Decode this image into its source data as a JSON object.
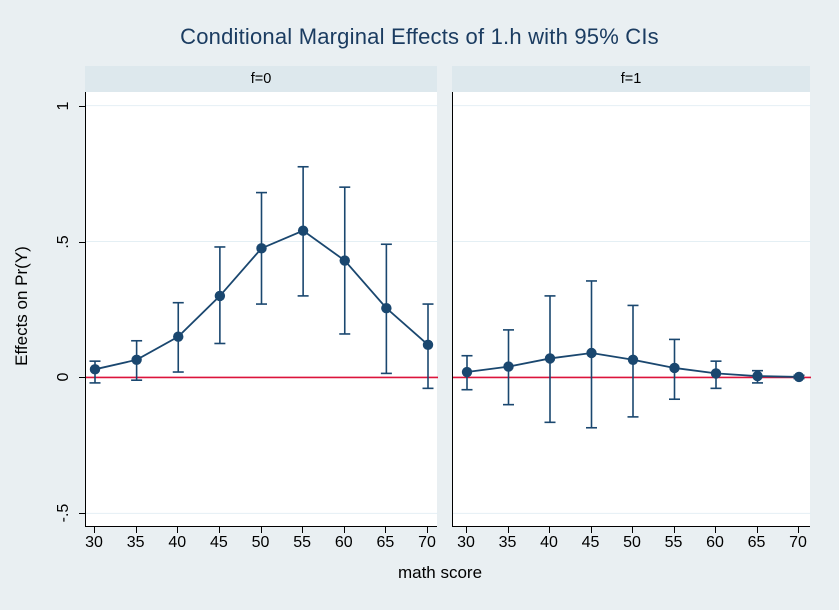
{
  "chart_data": {
    "type": "line",
    "title": "Conditional Marginal Effects of 1.h with 95% CIs",
    "xlabel": "math score",
    "ylabel": "Effects on Pr(Y)",
    "x": [
      30,
      35,
      40,
      45,
      50,
      55,
      60,
      65,
      70
    ],
    "x_tick_labels": [
      "30",
      "35",
      "40",
      "45",
      "50",
      "55",
      "60",
      "65",
      "70"
    ],
    "y_ticks": [
      {
        "value": 1,
        "label": "1"
      },
      {
        "value": 0.5,
        "label": ".5"
      },
      {
        "value": 0,
        "label": "0"
      },
      {
        "value": -0.5,
        "label": "-.5"
      }
    ],
    "ylim": [
      -0.55,
      1.05
    ],
    "xlim": [
      30,
      70
    ],
    "grid": true,
    "legend": "none",
    "reference_line_y": 0,
    "panels": [
      {
        "label": "f=0",
        "estimate": [
          0.03,
          0.065,
          0.15,
          0.3,
          0.475,
          0.54,
          0.43,
          0.255,
          0.12
        ],
        "ci_low": [
          -0.02,
          -0.01,
          0.02,
          0.125,
          0.27,
          0.3,
          0.16,
          0.015,
          -0.04
        ],
        "ci_high": [
          0.06,
          0.135,
          0.275,
          0.48,
          0.68,
          0.775,
          0.7,
          0.49,
          0.27
        ]
      },
      {
        "label": "f=1",
        "estimate": [
          0.02,
          0.04,
          0.07,
          0.09,
          0.065,
          0.035,
          0.015,
          0.005,
          0.002
        ],
        "ci_low": [
          -0.045,
          -0.1,
          -0.165,
          -0.185,
          -0.145,
          -0.08,
          -0.04,
          -0.02,
          -0.004
        ],
        "ci_high": [
          0.08,
          0.175,
          0.3,
          0.355,
          0.265,
          0.14,
          0.06,
          0.025,
          0.008
        ]
      }
    ],
    "colors": {
      "series": "#1a476f",
      "reference_line": "#dc143c",
      "grid_line": "#e4eff4",
      "title_text": "#1b3c61",
      "figure_background": "#e9eff2",
      "panel_header_background": "#dde8ed",
      "plot_background": "#ffffff"
    }
  }
}
